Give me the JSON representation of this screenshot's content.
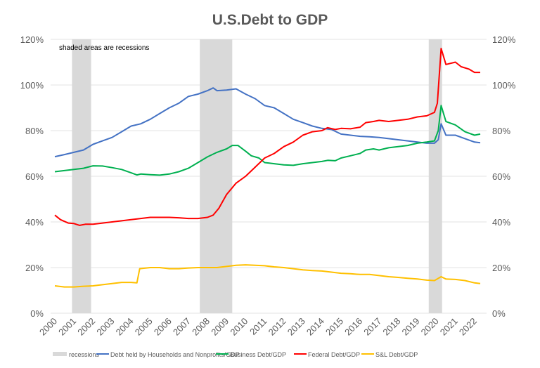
{
  "chart_data": {
    "type": "line",
    "title": "U.S.Debt to GDP",
    "annotation": "shaded areas are recessions",
    "xlabel": "",
    "ylabel": "",
    "xlim": [
      2000,
      2022.3
    ],
    "ylim": [
      0,
      120
    ],
    "y_ticks": [
      "0%",
      "20%",
      "40%",
      "60%",
      "80%",
      "100%",
      "120%"
    ],
    "y_tick_values": [
      0,
      20,
      40,
      60,
      80,
      100,
      120
    ],
    "secondary_y_axis": true,
    "x_ticks": [
      "2000",
      "2001",
      "2002",
      "2003",
      "2004",
      "2005",
      "2006",
      "2007",
      "2008",
      "2009",
      "2010",
      "2011",
      "2012",
      "2013",
      "2014",
      "2015",
      "2016",
      "2017",
      "2018",
      "2019",
      "2020",
      "2021",
      "2022"
    ],
    "grid": true,
    "legend_position": "bottom",
    "recessions": {
      "name": "recessions",
      "color": "#d9d9d9",
      "periods": [
        [
          2000.9,
          2001.9
        ],
        [
          2007.6,
          2009.3
        ],
        [
          2019.6,
          2020.3
        ]
      ]
    },
    "series": [
      {
        "name": "Debt held by Households and Nonprofits/GDP",
        "color": "#4472c4",
        "points": [
          [
            2000,
            68.6
          ],
          [
            2000.5,
            69.5
          ],
          [
            2001,
            70.5
          ],
          [
            2001.5,
            71.5
          ],
          [
            2002,
            74
          ],
          [
            2002.5,
            75.5
          ],
          [
            2003,
            77
          ],
          [
            2003.5,
            79.5
          ],
          [
            2004,
            82
          ],
          [
            2004.5,
            83
          ],
          [
            2005,
            85
          ],
          [
            2005.5,
            87.5
          ],
          [
            2006,
            90
          ],
          [
            2006.5,
            92
          ],
          [
            2007,
            95
          ],
          [
            2007.5,
            96
          ],
          [
            2008,
            97.5
          ],
          [
            2008.3,
            98.7
          ],
          [
            2008.5,
            97.5
          ],
          [
            2009,
            97.8
          ],
          [
            2009.5,
            98.3
          ],
          [
            2010,
            96
          ],
          [
            2010.5,
            94
          ],
          [
            2011,
            91
          ],
          [
            2011.5,
            90
          ],
          [
            2012,
            87.5
          ],
          [
            2012.5,
            85
          ],
          [
            2013,
            83.5
          ],
          [
            2013.5,
            82
          ],
          [
            2014,
            81
          ],
          [
            2014.5,
            80.5
          ],
          [
            2015,
            78.5
          ],
          [
            2015.5,
            78
          ],
          [
            2016,
            77.5
          ],
          [
            2016.5,
            77.3
          ],
          [
            2017,
            77
          ],
          [
            2017.5,
            76.5
          ],
          [
            2018,
            76
          ],
          [
            2018.5,
            75.5
          ],
          [
            2019,
            75
          ],
          [
            2019.5,
            74.5
          ],
          [
            2019.9,
            74.5
          ],
          [
            2020.1,
            76
          ],
          [
            2020.25,
            83
          ],
          [
            2020.5,
            78
          ],
          [
            2021,
            78
          ],
          [
            2021.5,
            76.5
          ],
          [
            2022,
            75
          ],
          [
            2022.3,
            74.7
          ]
        ]
      },
      {
        "name": "Business Debt/GDP",
        "color": "#00b050",
        "points": [
          [
            2000,
            62
          ],
          [
            2000.5,
            62.5
          ],
          [
            2001,
            63
          ],
          [
            2001.5,
            63.5
          ],
          [
            2002,
            64.6
          ],
          [
            2002.5,
            64.5
          ],
          [
            2003,
            63.8
          ],
          [
            2003.5,
            63
          ],
          [
            2004,
            61.5
          ],
          [
            2004.3,
            60.6
          ],
          [
            2004.5,
            61
          ],
          [
            2005,
            60.7
          ],
          [
            2005.5,
            60.5
          ],
          [
            2006,
            61
          ],
          [
            2006.5,
            62
          ],
          [
            2007,
            63.5
          ],
          [
            2007.5,
            66
          ],
          [
            2008,
            68.5
          ],
          [
            2008.5,
            70.5
          ],
          [
            2009,
            72
          ],
          [
            2009.3,
            73.5
          ],
          [
            2009.6,
            73.5
          ],
          [
            2010,
            71
          ],
          [
            2010.3,
            69
          ],
          [
            2010.7,
            68
          ],
          [
            2011,
            66
          ],
          [
            2011.5,
            65.5
          ],
          [
            2012,
            65
          ],
          [
            2012.5,
            64.8
          ],
          [
            2013,
            65.5
          ],
          [
            2013.5,
            66
          ],
          [
            2014,
            66.5
          ],
          [
            2014.3,
            67
          ],
          [
            2014.7,
            66.8
          ],
          [
            2015,
            68
          ],
          [
            2015.5,
            69
          ],
          [
            2016,
            70
          ],
          [
            2016.3,
            71.5
          ],
          [
            2016.7,
            72
          ],
          [
            2017,
            71.5
          ],
          [
            2017.5,
            72.5
          ],
          [
            2018,
            73
          ],
          [
            2018.5,
            73.5
          ],
          [
            2019,
            74.5
          ],
          [
            2019.5,
            75
          ],
          [
            2019.9,
            75.5
          ],
          [
            2020.1,
            80
          ],
          [
            2020.25,
            91
          ],
          [
            2020.5,
            84
          ],
          [
            2021,
            82.5
          ],
          [
            2021.5,
            79.5
          ],
          [
            2022,
            78
          ],
          [
            2022.3,
            78.5
          ]
        ]
      },
      {
        "name": "Federal Debt/GDP",
        "color": "#ff0000",
        "points": [
          [
            2000,
            43
          ],
          [
            2000.3,
            41
          ],
          [
            2000.7,
            39.5
          ],
          [
            2001,
            39.3
          ],
          [
            2001.3,
            38.5
          ],
          [
            2001.6,
            39
          ],
          [
            2002,
            39
          ],
          [
            2002.5,
            39.5
          ],
          [
            2003,
            40
          ],
          [
            2003.5,
            40.5
          ],
          [
            2004,
            41
          ],
          [
            2004.5,
            41.5
          ],
          [
            2005,
            42
          ],
          [
            2005.5,
            42
          ],
          [
            2006,
            42
          ],
          [
            2006.5,
            41.8
          ],
          [
            2007,
            41.5
          ],
          [
            2007.5,
            41.5
          ],
          [
            2008,
            42
          ],
          [
            2008.3,
            43
          ],
          [
            2008.6,
            46
          ],
          [
            2009,
            52
          ],
          [
            2009.5,
            57
          ],
          [
            2010,
            60
          ],
          [
            2010.5,
            64
          ],
          [
            2011,
            68
          ],
          [
            2011.5,
            70
          ],
          [
            2012,
            73
          ],
          [
            2012.5,
            75
          ],
          [
            2013,
            78
          ],
          [
            2013.5,
            79.5
          ],
          [
            2014,
            80
          ],
          [
            2014.3,
            81.3
          ],
          [
            2014.7,
            80.5
          ],
          [
            2015,
            81
          ],
          [
            2015.5,
            80.8
          ],
          [
            2016,
            81.5
          ],
          [
            2016.3,
            83.5
          ],
          [
            2016.7,
            84
          ],
          [
            2017,
            84.5
          ],
          [
            2017.5,
            84
          ],
          [
            2018,
            84.5
          ],
          [
            2018.5,
            85
          ],
          [
            2019,
            86
          ],
          [
            2019.5,
            86.5
          ],
          [
            2019.9,
            88
          ],
          [
            2020.05,
            92
          ],
          [
            2020.25,
            116
          ],
          [
            2020.5,
            109
          ],
          [
            2021,
            110
          ],
          [
            2021.3,
            108
          ],
          [
            2021.7,
            107
          ],
          [
            2022,
            105.5
          ],
          [
            2022.3,
            105.5
          ]
        ]
      },
      {
        "name": "S&L Debt/GDP",
        "color": "#ffc000",
        "points": [
          [
            2000,
            12
          ],
          [
            2000.5,
            11.5
          ],
          [
            2001,
            11.5
          ],
          [
            2001.5,
            11.8
          ],
          [
            2002,
            12
          ],
          [
            2002.5,
            12.5
          ],
          [
            2003,
            13
          ],
          [
            2003.5,
            13.5
          ],
          [
            2004,
            13.5
          ],
          [
            2004.3,
            13.3
          ],
          [
            2004.45,
            19.5
          ],
          [
            2005,
            20
          ],
          [
            2005.5,
            20
          ],
          [
            2006,
            19.5
          ],
          [
            2006.5,
            19.5
          ],
          [
            2007,
            19.8
          ],
          [
            2007.5,
            20
          ],
          [
            2008,
            20
          ],
          [
            2008.5,
            20
          ],
          [
            2009,
            20.5
          ],
          [
            2009.5,
            21
          ],
          [
            2010,
            21.2
          ],
          [
            2010.5,
            21
          ],
          [
            2011,
            20.8
          ],
          [
            2011.5,
            20.3
          ],
          [
            2012,
            20
          ],
          [
            2012.5,
            19.5
          ],
          [
            2013,
            19
          ],
          [
            2013.5,
            18.7
          ],
          [
            2014,
            18.5
          ],
          [
            2014.5,
            18
          ],
          [
            2015,
            17.5
          ],
          [
            2015.5,
            17.3
          ],
          [
            2016,
            17
          ],
          [
            2016.5,
            17
          ],
          [
            2017,
            16.5
          ],
          [
            2017.5,
            16
          ],
          [
            2018,
            15.7
          ],
          [
            2018.5,
            15.3
          ],
          [
            2019,
            15
          ],
          [
            2019.5,
            14.5
          ],
          [
            2019.9,
            14.3
          ],
          [
            2020.25,
            16
          ],
          [
            2020.5,
            15
          ],
          [
            2021,
            14.8
          ],
          [
            2021.5,
            14.3
          ],
          [
            2022,
            13.3
          ],
          [
            2022.3,
            13
          ]
        ]
      }
    ]
  }
}
